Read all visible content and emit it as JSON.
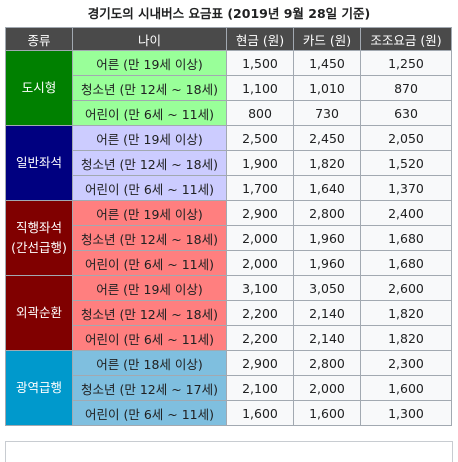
{
  "caption": "경기도의 시내버스 요금표 (2019년 9월 28일 기준)",
  "columns": [
    "종류",
    "나이",
    "현금 (원)",
    "카드 (원)",
    "조조요금 (원)"
  ],
  "groups": [
    {
      "type": "도시형",
      "type_color": "#008000",
      "age_color": "#99ff99",
      "rows": [
        {
          "age": "어른 (만 19세 이상)",
          "cash": "1,500",
          "card": "1,450",
          "early": "1,250"
        },
        {
          "age": "청소년 (만 12세 ~ 18세)",
          "cash": "1,100",
          "card": "1,010",
          "early": "870"
        },
        {
          "age": "어린이 (만 6세 ~ 11세)",
          "cash": "800",
          "card": "730",
          "early": "630"
        }
      ]
    },
    {
      "type": "일반좌석",
      "type_color": "#000080",
      "age_color": "#ccccff",
      "rows": [
        {
          "age": "어른 (만 19세 이상)",
          "cash": "2,500",
          "card": "2,450",
          "early": "2,050"
        },
        {
          "age": "청소년 (만 12세 ~ 18세)",
          "cash": "1,900",
          "card": "1,820",
          "early": "1,520"
        },
        {
          "age": "어린이 (만 6세 ~ 11세)",
          "cash": "1,700",
          "card": "1,640",
          "early": "1,370"
        }
      ]
    },
    {
      "type": "직행좌석\n(간선급행)",
      "type_color": "#800000",
      "age_color": "#ff7f7f",
      "rows": [
        {
          "age": "어른 (만 19세 이상)",
          "cash": "2,900",
          "card": "2,800",
          "early": "2,400"
        },
        {
          "age": "청소년 (만 12세 ~ 18세)",
          "cash": "2,000",
          "card": "1,960",
          "early": "1,680"
        },
        {
          "age": "어린이 (만 6세 ~ 11세)",
          "cash": "2,000",
          "card": "1,960",
          "early": "1,680"
        }
      ]
    },
    {
      "type": "외곽순환",
      "type_color": "#800000",
      "age_color": "#ff7f7f",
      "rows": [
        {
          "age": "어른 (만 19세 이상)",
          "cash": "3,100",
          "card": "3,050",
          "early": "2,600"
        },
        {
          "age": "청소년 (만 12세 ~ 18세)",
          "cash": "2,200",
          "card": "2,140",
          "early": "1,820"
        },
        {
          "age": "어린이 (만 6세 ~ 11세)",
          "cash": "2,200",
          "card": "2,140",
          "early": "1,820"
        }
      ]
    },
    {
      "type": "광역급행",
      "type_color": "#0099cc",
      "age_color": "#7fbfdf",
      "rows": [
        {
          "age": "어른 (만 18세 이상)",
          "cash": "2,900",
          "card": "2,800",
          "early": "2,300"
        },
        {
          "age": "청소년 (만 12세 ~ 17세)",
          "cash": "2,100",
          "card": "2,000",
          "early": "1,600"
        },
        {
          "age": "어린이 (만 6세 ~ 11세)",
          "cash": "1,600",
          "card": "1,600",
          "early": "1,300"
        }
      ]
    }
  ]
}
